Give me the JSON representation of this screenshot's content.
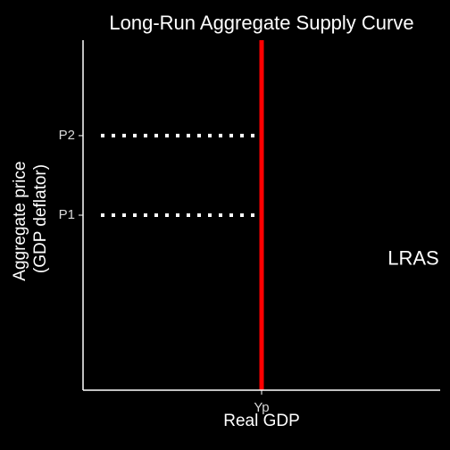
{
  "chart_data": {
    "type": "line",
    "title": "Long-Run Aggregate Supply Curve",
    "xlabel": "Real GDP",
    "ylabel": [
      "Aggregate price",
      "(GDP deflator)"
    ],
    "x_ticks": [
      {
        "label": "Yp",
        "value": 1.0
      }
    ],
    "y_ticks": [
      {
        "label": "P1",
        "value": 1.0
      },
      {
        "label": "P2",
        "value": 1.5
      }
    ],
    "xlim": [
      0,
      2
    ],
    "ylim": [
      -0.1,
      2.1
    ],
    "grid": false,
    "series": [
      {
        "name": "LRAS",
        "style": "solid",
        "color": "#ff0000",
        "points": [
          {
            "x": 1.0,
            "y": -0.1
          },
          {
            "x": 1.0,
            "y": 2.1
          }
        ]
      }
    ],
    "guides": [
      {
        "color": "#ffffff",
        "style": "dotted",
        "points": [
          {
            "x": 0.1,
            "y": 1.5
          },
          {
            "x": 1.0,
            "y": 1.5
          }
        ]
      },
      {
        "color": "#ffffff",
        "style": "dotted",
        "points": [
          {
            "x": 0.1,
            "y": 1.0
          },
          {
            "x": 1.0,
            "y": 1.0
          }
        ]
      }
    ],
    "annotations": [
      {
        "text": "LRAS",
        "x": 1.85,
        "y": 0.72
      }
    ]
  }
}
